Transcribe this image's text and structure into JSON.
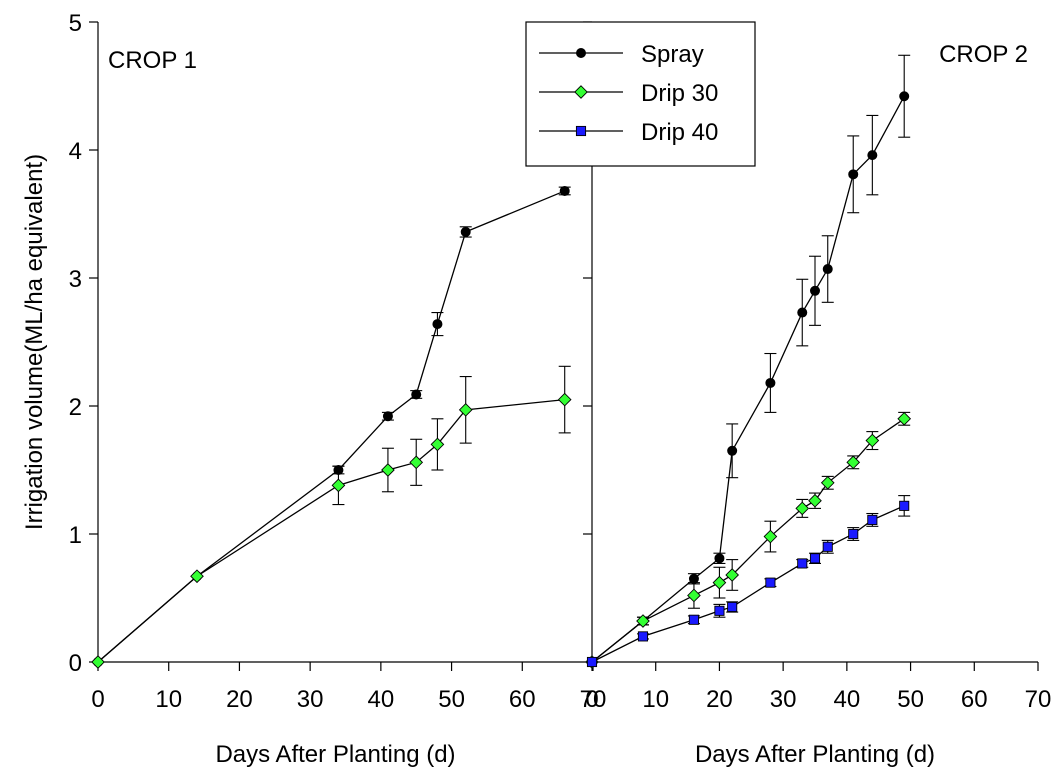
{
  "chart_data": {
    "type": "line",
    "ylabel": "Irrigation volume(ML/ha equivalent)",
    "ylim": [
      0,
      5
    ],
    "yticks": [
      0,
      1,
      2,
      3,
      4,
      5
    ],
    "grid": false,
    "legend": {
      "placement": "top-center",
      "entries": [
        {
          "name": "Spray",
          "color": "#000000",
          "marker": "circle"
        },
        {
          "name": "Drip 30",
          "color": "#33ff33",
          "marker": "diamond"
        },
        {
          "name": "Drip 40",
          "color": "#1a1aff",
          "marker": "square"
        }
      ]
    },
    "panels": [
      {
        "label": "CROP 1",
        "xlabel": "Days After Planting (d)",
        "xlim": [
          0,
          70
        ],
        "xticks": [
          0,
          10,
          20,
          30,
          40,
          50,
          60,
          70
        ],
        "series": [
          {
            "name": "Spray",
            "points": [
              {
                "x": 0,
                "y": 0,
                "err": 0
              },
              {
                "x": 14,
                "y": 0.67,
                "err": 0
              },
              {
                "x": 34,
                "y": 1.5,
                "err": 0.03
              },
              {
                "x": 41,
                "y": 1.92,
                "err": 0.03
              },
              {
                "x": 45,
                "y": 2.09,
                "err": 0.03
              },
              {
                "x": 48,
                "y": 2.64,
                "err": 0.09
              },
              {
                "x": 52,
                "y": 3.36,
                "err": 0.04
              },
              {
                "x": 66,
                "y": 3.68,
                "err": 0.03
              }
            ]
          },
          {
            "name": "Drip 30",
            "points": [
              {
                "x": 0,
                "y": 0,
                "err": 0
              },
              {
                "x": 14,
                "y": 0.67,
                "err": 0
              },
              {
                "x": 34,
                "y": 1.38,
                "err": 0.15
              },
              {
                "x": 41,
                "y": 1.5,
                "err": 0.17
              },
              {
                "x": 45,
                "y": 1.56,
                "err": 0.18
              },
              {
                "x": 48,
                "y": 1.7,
                "err": 0.2
              },
              {
                "x": 52,
                "y": 1.97,
                "err": 0.26
              },
              {
                "x": 66,
                "y": 2.05,
                "err": 0.26
              }
            ]
          }
        ]
      },
      {
        "label": "CROP 2",
        "xlabel": "Days After Planting (d)",
        "xlim": [
          0,
          70
        ],
        "xticks": [
          0,
          10,
          20,
          30,
          40,
          50,
          60,
          70
        ],
        "series": [
          {
            "name": "Spray",
            "points": [
              {
                "x": 0,
                "y": 0,
                "err": 0
              },
              {
                "x": 8,
                "y": 0.32,
                "err": 0.03
              },
              {
                "x": 16,
                "y": 0.65,
                "err": 0.04
              },
              {
                "x": 20,
                "y": 0.81,
                "err": 0.04
              },
              {
                "x": 22,
                "y": 1.65,
                "err": 0.21
              },
              {
                "x": 28,
                "y": 2.18,
                "err": 0.23
              },
              {
                "x": 33,
                "y": 2.73,
                "err": 0.26
              },
              {
                "x": 35,
                "y": 2.9,
                "err": 0.27
              },
              {
                "x": 37,
                "y": 3.07,
                "err": 0.26
              },
              {
                "x": 41,
                "y": 3.81,
                "err": 0.3
              },
              {
                "x": 44,
                "y": 3.96,
                "err": 0.31
              },
              {
                "x": 49,
                "y": 4.42,
                "err": 0.32
              }
            ]
          },
          {
            "name": "Drip 30",
            "points": [
              {
                "x": 0,
                "y": 0,
                "err": 0
              },
              {
                "x": 8,
                "y": 0.32,
                "err": 0.03
              },
              {
                "x": 16,
                "y": 0.52,
                "err": 0.1
              },
              {
                "x": 20,
                "y": 0.62,
                "err": 0.12
              },
              {
                "x": 22,
                "y": 0.68,
                "err": 0.12
              },
              {
                "x": 28,
                "y": 0.98,
                "err": 0.12
              },
              {
                "x": 33,
                "y": 1.2,
                "err": 0.07
              },
              {
                "x": 35,
                "y": 1.26,
                "err": 0.06
              },
              {
                "x": 37,
                "y": 1.4,
                "err": 0.05
              },
              {
                "x": 41,
                "y": 1.56,
                "err": 0.05
              },
              {
                "x": 44,
                "y": 1.73,
                "err": 0.07
              },
              {
                "x": 49,
                "y": 1.9,
                "err": 0.05
              }
            ]
          },
          {
            "name": "Drip 40",
            "points": [
              {
                "x": 0,
                "y": 0,
                "err": 0
              },
              {
                "x": 8,
                "y": 0.2,
                "err": 0.02
              },
              {
                "x": 16,
                "y": 0.33,
                "err": 0.03
              },
              {
                "x": 20,
                "y": 0.4,
                "err": 0.05
              },
              {
                "x": 22,
                "y": 0.43,
                "err": 0.04
              },
              {
                "x": 28,
                "y": 0.62,
                "err": 0.03
              },
              {
                "x": 33,
                "y": 0.77,
                "err": 0.03
              },
              {
                "x": 35,
                "y": 0.81,
                "err": 0.04
              },
              {
                "x": 37,
                "y": 0.9,
                "err": 0.05
              },
              {
                "x": 41,
                "y": 1.0,
                "err": 0.05
              },
              {
                "x": 44,
                "y": 1.11,
                "err": 0.05
              },
              {
                "x": 49,
                "y": 1.22,
                "err": 0.08
              }
            ]
          }
        ]
      }
    ]
  }
}
